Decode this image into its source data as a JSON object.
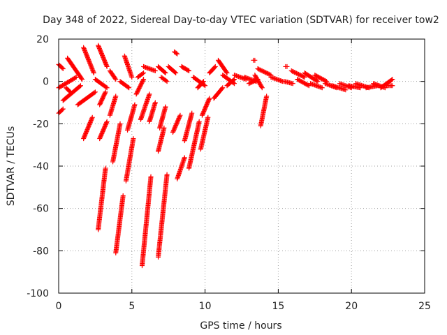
{
  "chart_data": {
    "type": "scatter",
    "title": "Day 348 of 2022, Sidereal Day-to-day VTEC variation (SDTVAR) for receiver tow2",
    "xlabel": "GPS time / hours",
    "ylabel": "SDTVAR / TECUs",
    "xlim": [
      0,
      25
    ],
    "ylim": [
      -100,
      20
    ],
    "xticks": [
      0,
      5,
      10,
      15,
      20,
      25
    ],
    "yticks": [
      20,
      0,
      -20,
      -40,
      -60,
      -80,
      -100
    ],
    "xtick_labels": [
      "0",
      "5",
      "10",
      "15",
      "20",
      "25"
    ],
    "ytick_labels": [
      "20",
      "0",
      "-20",
      "-40",
      "-60",
      "-80",
      "-100"
    ],
    "grid": true,
    "marker": "+",
    "color": "#ff0000",
    "tracks": [
      {
        "x0": 0.0,
        "y0": 8,
        "x1": 0.3,
        "y1": 6
      },
      {
        "x0": 0.0,
        "y0": -15,
        "x1": 0.3,
        "y1": -13
      },
      {
        "x0": 0.0,
        "y0": -3,
        "x1": 1.2,
        "y1": 2
      },
      {
        "x0": 0.6,
        "y0": 11,
        "x1": 1.6,
        "y1": 1
      },
      {
        "x0": 0.3,
        "y0": -9,
        "x1": 1.5,
        "y1": -2
      },
      {
        "x0": 0.5,
        "y0": -3,
        "x1": 0.8,
        "y1": -5
      },
      {
        "x0": 1.3,
        "y0": -11,
        "x1": 2.5,
        "y1": -5
      },
      {
        "x0": 1.7,
        "y0": 16,
        "x1": 2.4,
        "y1": 4
      },
      {
        "x0": 1.7,
        "y0": -27,
        "x1": 2.3,
        "y1": -17
      },
      {
        "x0": 2.5,
        "y0": 1,
        "x1": 3.3,
        "y1": -3
      },
      {
        "x0": 2.7,
        "y0": 17,
        "x1": 3.3,
        "y1": 7
      },
      {
        "x0": 2.7,
        "y0": -70,
        "x1": 3.2,
        "y1": -41
      },
      {
        "x0": 2.8,
        "y0": -11,
        "x1": 3.2,
        "y1": -5
      },
      {
        "x0": 2.8,
        "y0": -27,
        "x1": 3.3,
        "y1": -19
      },
      {
        "x0": 3.5,
        "y0": 5,
        "x1": 3.9,
        "y1": 1
      },
      {
        "x0": 3.5,
        "y0": -16,
        "x1": 3.9,
        "y1": -7
      },
      {
        "x0": 3.7,
        "y0": -38,
        "x1": 4.2,
        "y1": -20
      },
      {
        "x0": 3.9,
        "y0": -81,
        "x1": 4.4,
        "y1": -54
      },
      {
        "x0": 4.2,
        "y0": 0,
        "x1": 4.8,
        "y1": -3
      },
      {
        "x0": 4.5,
        "y0": 12,
        "x1": 5.0,
        "y1": 2
      },
      {
        "x0": 4.6,
        "y0": -47,
        "x1": 5.1,
        "y1": -27
      },
      {
        "x0": 4.7,
        "y0": -23,
        "x1": 5.2,
        "y1": -11
      },
      {
        "x0": 5.3,
        "y0": -6,
        "x1": 5.8,
        "y1": 1
      },
      {
        "x0": 5.4,
        "y0": 2,
        "x1": 5.8,
        "y1": 4
      },
      {
        "x0": 5.6,
        "y0": -18,
        "x1": 6.2,
        "y1": -6
      },
      {
        "x0": 5.7,
        "y0": -87,
        "x1": 6.3,
        "y1": -45
      },
      {
        "x0": 5.8,
        "y0": 7,
        "x1": 6.6,
        "y1": 5
      },
      {
        "x0": 6.2,
        "y0": -19,
        "x1": 6.6,
        "y1": -10
      },
      {
        "x0": 6.8,
        "y0": -83,
        "x1": 7.4,
        "y1": -44
      },
      {
        "x0": 6.8,
        "y0": -33,
        "x1": 7.2,
        "y1": -22
      },
      {
        "x0": 6.9,
        "y0": -22,
        "x1": 7.3,
        "y1": -12
      },
      {
        "x0": 6.8,
        "y0": 7,
        "x1": 7.3,
        "y1": 4
      },
      {
        "x0": 7.0,
        "y0": 2,
        "x1": 7.4,
        "y1": 0
      },
      {
        "x0": 7.5,
        "y0": 7,
        "x1": 8.0,
        "y1": 4
      },
      {
        "x0": 7.8,
        "y0": -24,
        "x1": 8.3,
        "y1": -16
      },
      {
        "x0": 7.9,
        "y0": 14,
        "x1": 8.1,
        "y1": 13
      },
      {
        "x0": 8.1,
        "y0": -46,
        "x1": 8.6,
        "y1": -36
      },
      {
        "x0": 8.4,
        "y0": 7,
        "x1": 8.9,
        "y1": 5
      },
      {
        "x0": 8.6,
        "y0": -28,
        "x1": 9.1,
        "y1": -15
      },
      {
        "x0": 8.9,
        "y0": -41,
        "x1": 9.6,
        "y1": -19
      },
      {
        "x0": 9.2,
        "y0": 2,
        "x1": 10.0,
        "y1": -2
      },
      {
        "x0": 9.5,
        "y0": -3,
        "x1": 9.9,
        "y1": 0
      },
      {
        "x0": 9.7,
        "y0": -32,
        "x1": 10.2,
        "y1": -17
      },
      {
        "x0": 9.8,
        "y0": -16,
        "x1": 10.3,
        "y1": -8
      },
      {
        "x0": 10.3,
        "y0": 4,
        "x1": 10.7,
        "y1": 7
      },
      {
        "x0": 10.6,
        "y0": -8,
        "x1": 11.2,
        "y1": -3
      },
      {
        "x0": 10.9,
        "y0": 10,
        "x1": 11.5,
        "y1": 4
      },
      {
        "x0": 11.2,
        "y0": 3,
        "x1": 12.0,
        "y1": -1
      },
      {
        "x0": 11.5,
        "y0": -2,
        "x1": 12.0,
        "y1": 1
      },
      {
        "x0": 12.0,
        "y0": 3,
        "x1": 12.8,
        "y1": 1
      },
      {
        "x0": 12.7,
        "y0": 2,
        "x1": 13.5,
        "y1": 0
      },
      {
        "x0": 13.0,
        "y0": -1,
        "x1": 13.6,
        "y1": 1
      },
      {
        "x0": 13.3,
        "y0": 10,
        "x1": 13.4,
        "y1": 10
      },
      {
        "x0": 13.4,
        "y0": 3,
        "x1": 13.9,
        "y1": -3
      },
      {
        "x0": 13.6,
        "y0": 6,
        "x1": 14.5,
        "y1": 3
      },
      {
        "x0": 13.8,
        "y0": -21,
        "x1": 14.2,
        "y1": -7
      },
      {
        "x0": 14.5,
        "y0": 2,
        "x1": 15.3,
        "y1": 0
      },
      {
        "x0": 15.4,
        "y0": 0,
        "x1": 16.0,
        "y1": -1
      },
      {
        "x0": 15.5,
        "y0": 7,
        "x1": 15.6,
        "y1": 7
      },
      {
        "x0": 15.9,
        "y0": 5,
        "x1": 16.8,
        "y1": 2
      },
      {
        "x0": 16.3,
        "y0": 1,
        "x1": 17.1,
        "y1": -2
      },
      {
        "x0": 16.8,
        "y0": 4,
        "x1": 17.7,
        "y1": 0
      },
      {
        "x0": 17.2,
        "y0": -1,
        "x1": 18.0,
        "y1": -3
      },
      {
        "x0": 17.5,
        "y0": 3,
        "x1": 18.3,
        "y1": 0
      },
      {
        "x0": 18.2,
        "y0": -1,
        "x1": 19.0,
        "y1": -3
      },
      {
        "x0": 18.7,
        "y0": -2,
        "x1": 19.6,
        "y1": -4
      },
      {
        "x0": 19.2,
        "y0": -1,
        "x1": 20.0,
        "y1": -3
      },
      {
        "x0": 19.8,
        "y0": -2,
        "x1": 20.6,
        "y1": -3
      },
      {
        "x0": 20.3,
        "y0": -1,
        "x1": 21.2,
        "y1": -3
      },
      {
        "x0": 21.0,
        "y0": -3,
        "x1": 21.8,
        "y1": -2
      },
      {
        "x0": 21.5,
        "y0": -1,
        "x1": 22.3,
        "y1": -3
      },
      {
        "x0": 22.0,
        "y0": -3,
        "x1": 22.8,
        "y1": 1
      },
      {
        "x0": 22.4,
        "y0": -2,
        "x1": 22.8,
        "y1": -2
      }
    ]
  }
}
